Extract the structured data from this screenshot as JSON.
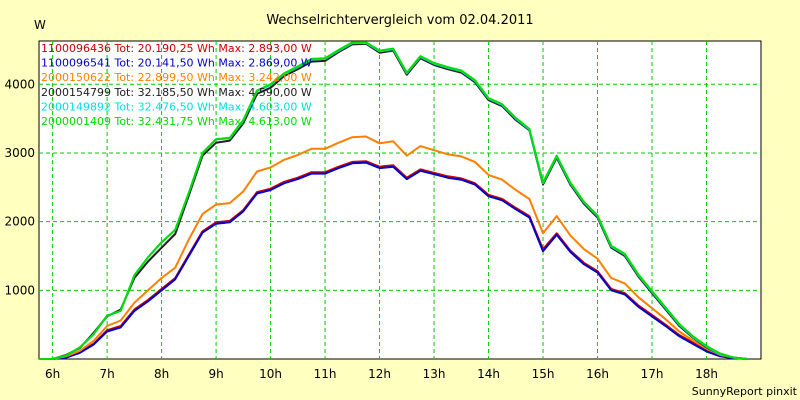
{
  "chart_data": {
    "type": "line",
    "title": "Wechselrichtervergleich vom 02.04.2011",
    "ylabel": "W",
    "xlabel": "",
    "footer": "SunnyReport pinxit",
    "colors": {
      "background": "#ffffc0",
      "plot_background": "#ffffff",
      "grid": "#00cc00"
    },
    "xlim": [
      5.75,
      19.0
    ],
    "ylim": [
      0,
      4630
    ],
    "x_ticks": [
      6,
      7,
      8,
      9,
      10,
      11,
      12,
      13,
      14,
      15,
      16,
      17,
      18
    ],
    "x_tick_labels": [
      "6h",
      "7h",
      "8h",
      "9h",
      "10h",
      "11h",
      "12h",
      "13h",
      "14h",
      "15h",
      "16h",
      "17h",
      "18h"
    ],
    "y_ticks": [
      1000,
      2000,
      3000,
      4000
    ],
    "y_tick_labels": [
      "1000",
      "2000",
      "3000",
      "4000"
    ],
    "grid": true,
    "legend_position": "top-left",
    "x": [
      5.75,
      6.0,
      6.25,
      6.5,
      6.75,
      7.0,
      7.25,
      7.5,
      7.75,
      8.0,
      8.25,
      8.5,
      8.75,
      9.0,
      9.25,
      9.5,
      9.75,
      10.0,
      10.25,
      10.5,
      10.75,
      11.0,
      11.25,
      11.5,
      11.75,
      12.0,
      12.25,
      12.5,
      12.75,
      13.0,
      13.25,
      13.5,
      13.75,
      14.0,
      14.25,
      14.5,
      14.75,
      15.0,
      15.25,
      15.5,
      15.75,
      16.0,
      16.25,
      16.5,
      16.75,
      17.0,
      17.25,
      17.5,
      17.75,
      18.0,
      18.25,
      18.5,
      18.75
    ],
    "series": [
      {
        "name": "1100096436",
        "legend": "1100096436 Tot: 20.190,25 Wh Max: 2.893,00 W",
        "color": "#cc0000",
        "values": [
          0,
          0,
          30,
          100,
          220,
          420,
          480,
          720,
          860,
          1020,
          1180,
          1520,
          1860,
          1990,
          2010,
          2170,
          2430,
          2480,
          2580,
          2640,
          2720,
          2720,
          2800,
          2870,
          2880,
          2800,
          2820,
          2640,
          2760,
          2710,
          2660,
          2630,
          2560,
          2390,
          2330,
          2200,
          2080,
          1600,
          1830,
          1580,
          1400,
          1280,
          1020,
          960,
          780,
          640,
          500,
          350,
          240,
          130,
          50,
          20,
          0
        ]
      },
      {
        "name": "1100096541",
        "legend": "1100096541 Tot: 20.141,50 Wh Max: 2.869,00 W",
        "color": "#0000cc",
        "values": [
          0,
          0,
          20,
          90,
          210,
          400,
          460,
          700,
          840,
          1000,
          1160,
          1500,
          1840,
          1970,
          1990,
          2150,
          2410,
          2460,
          2560,
          2620,
          2700,
          2700,
          2780,
          2850,
          2860,
          2780,
          2800,
          2620,
          2740,
          2690,
          2640,
          2610,
          2540,
          2370,
          2310,
          2180,
          2060,
          1570,
          1810,
          1560,
          1380,
          1260,
          1000,
          940,
          760,
          620,
          480,
          330,
          220,
          110,
          40,
          10,
          0
        ]
      },
      {
        "name": "2000150622",
        "legend": "2000150622 Tot: 22.899,50 Wh Max: 3.242,00 W",
        "color": "#ff8000",
        "values": [
          0,
          0,
          40,
          120,
          260,
          480,
          560,
          820,
          1000,
          1180,
          1330,
          1740,
          2110,
          2250,
          2270,
          2440,
          2730,
          2790,
          2900,
          2970,
          3060,
          3060,
          3150,
          3230,
          3240,
          3140,
          3170,
          2960,
          3100,
          3040,
          2980,
          2950,
          2870,
          2680,
          2610,
          2460,
          2330,
          1830,
          2080,
          1800,
          1600,
          1460,
          1180,
          1100,
          900,
          740,
          580,
          400,
          270,
          150,
          60,
          20,
          0
        ]
      },
      {
        "name": "2000154799",
        "legend": "2000154799 Tot: 32.185,50 Wh Max: 4.590,00 W",
        "color": "#202020",
        "values": [
          0,
          0,
          60,
          160,
          380,
          620,
          720,
          1180,
          1420,
          1620,
          1820,
          2380,
          2960,
          3150,
          3180,
          3430,
          3860,
          3950,
          4120,
          4220,
          4330,
          4340,
          4470,
          4580,
          4590,
          4460,
          4490,
          4140,
          4380,
          4280,
          4220,
          4170,
          4030,
          3770,
          3680,
          3480,
          3330,
          2540,
          2930,
          2540,
          2260,
          2060,
          1620,
          1500,
          1200,
          960,
          720,
          480,
          310,
          170,
          70,
          20,
          0
        ]
      },
      {
        "name": "2000149892",
        "legend": "2000149892 Tot: 32.476,50 Wh Max: 4.603,00 W",
        "color": "#00e0e0",
        "values": [
          0,
          0,
          50,
          170,
          360,
          630,
          700,
          1220,
          1480,
          1700,
          1880,
          2420,
          3000,
          3200,
          3210,
          3470,
          3900,
          3990,
          4150,
          4250,
          4360,
          4370,
          4490,
          4600,
          4603,
          4480,
          4510,
          4160,
          4400,
          4300,
          4240,
          4190,
          4050,
          3790,
          3700,
          3500,
          3340,
          2560,
          2950,
          2560,
          2280,
          2080,
          1640,
          1520,
          1220,
          980,
          740,
          500,
          320,
          180,
          70,
          20,
          0
        ]
      },
      {
        "name": "2000001409",
        "legend": "2000001409 Tot: 32.431,75 Wh Max: 4.613,00 W",
        "color": "#00dd00",
        "values": [
          0,
          0,
          50,
          170,
          360,
          630,
          700,
          1220,
          1480,
          1700,
          1880,
          2420,
          3000,
          3200,
          3220,
          3480,
          3910,
          4000,
          4160,
          4260,
          4370,
          4380,
          4500,
          4610,
          4613,
          4490,
          4520,
          4170,
          4410,
          4310,
          4250,
          4200,
          4060,
          3800,
          3710,
          3510,
          3350,
          2570,
          2960,
          2570,
          2290,
          2090,
          1650,
          1530,
          1230,
          990,
          750,
          510,
          330,
          190,
          80,
          20,
          0
        ]
      }
    ]
  }
}
